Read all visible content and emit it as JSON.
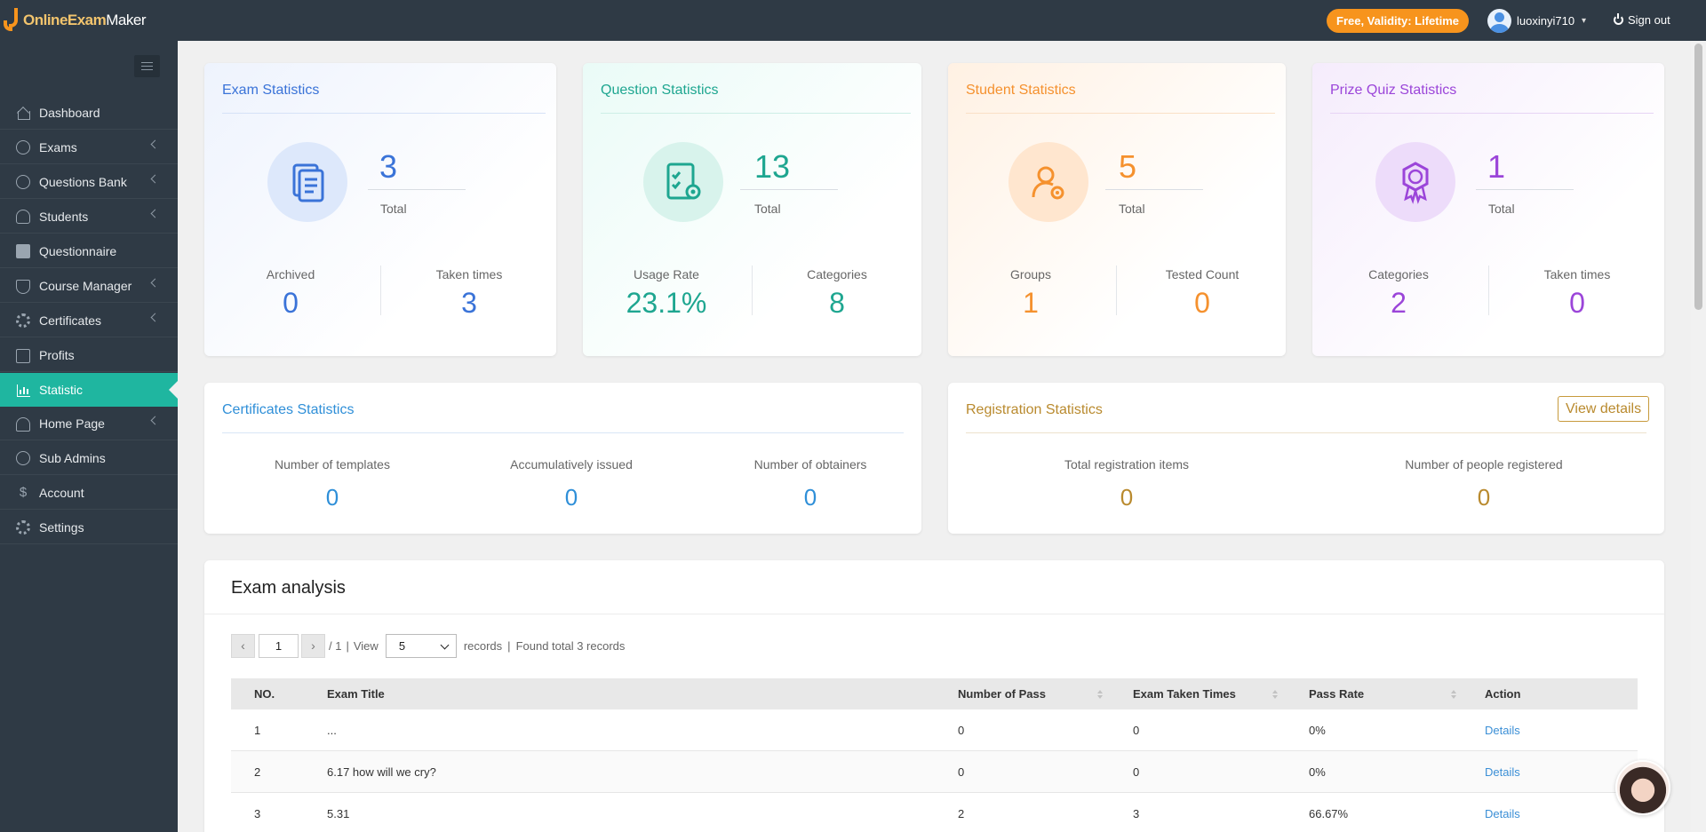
{
  "header": {
    "logo_bold": "OnlineExam",
    "logo_light": "Maker",
    "plan_badge": "Free, Validity: Lifetime",
    "username": "luoxinyi710",
    "signout": "Sign out"
  },
  "sidebar": {
    "items": [
      {
        "label": "Dashboard",
        "icon": "home-icon"
      },
      {
        "label": "Exams",
        "icon": "check-circle-icon"
      },
      {
        "label": "Questions Bank",
        "icon": "question-circle-icon"
      },
      {
        "label": "Students",
        "icon": "user-icon"
      },
      {
        "label": "Questionnaire",
        "icon": "checkbox-icon"
      },
      {
        "label": "Course Manager",
        "icon": "graduation-cap-icon"
      },
      {
        "label": "Certificates",
        "icon": "certificate-icon"
      },
      {
        "label": "Profits",
        "icon": "credit-card-icon"
      },
      {
        "label": "Statistic",
        "icon": "bar-chart-icon"
      },
      {
        "label": "Home Page",
        "icon": "home-page-icon"
      },
      {
        "label": "Sub Admins",
        "icon": "question-circle-icon"
      },
      {
        "label": "Account",
        "icon": "dollar-icon"
      },
      {
        "label": "Settings",
        "icon": "gear-icon"
      }
    ]
  },
  "exam_stats": {
    "title": "Exam Statistics",
    "total": "3",
    "total_label": "Total",
    "left_label": "Archived",
    "left_value": "0",
    "right_label": "Taken times",
    "right_value": "3",
    "color": "#3a73d8"
  },
  "question_stats": {
    "title": "Question Statistics",
    "total": "13",
    "total_label": "Total",
    "left_label": "Usage Rate",
    "left_value": "23.1%",
    "right_label": "Categories",
    "right_value": "8",
    "color": "#1ea690"
  },
  "student_stats": {
    "title": "Student Statistics",
    "total": "5",
    "total_label": "Total",
    "left_label": "Groups",
    "left_value": "1",
    "right_label": "Tested Count",
    "right_value": "0",
    "color": "#f5912e"
  },
  "prize_stats": {
    "title": "Prize Quiz Statistics",
    "total": "1",
    "total_label": "Total",
    "left_label": "Categories",
    "left_value": "2",
    "right_label": "Taken times",
    "right_value": "0",
    "color": "#9b45d9"
  },
  "cert_stats": {
    "title": "Certificates Statistics",
    "items": [
      {
        "label": "Number of templates",
        "value": "0"
      },
      {
        "label": "Accumulatively issued",
        "value": "0"
      },
      {
        "label": "Number of obtainers",
        "value": "0"
      }
    ]
  },
  "reg_stats": {
    "title": "Registration Statistics",
    "view_details": "View details",
    "items": [
      {
        "label": "Total registration items",
        "value": "0"
      },
      {
        "label": "Number of people registered",
        "value": "0"
      }
    ]
  },
  "analysis": {
    "title": "Exam analysis",
    "page": "1",
    "page_total": "/ 1",
    "view_label": "View",
    "page_size": "5",
    "records_label": "records",
    "found_label": "Found total 3 records",
    "columns": [
      "NO.",
      "Exam Title",
      "Number of Pass",
      "Exam Taken Times",
      "Pass Rate",
      "Action"
    ],
    "rows": [
      {
        "no": "1",
        "title": "...",
        "pass": "0",
        "taken": "0",
        "rate": "0%",
        "action": "Details"
      },
      {
        "no": "2",
        "title": "6.17 how will we cry?",
        "pass": "0",
        "taken": "0",
        "rate": "0%",
        "action": "Details"
      },
      {
        "no": "3",
        "title": "5.31",
        "pass": "2",
        "taken": "3",
        "rate": "66.67%",
        "action": "Details"
      }
    ]
  }
}
